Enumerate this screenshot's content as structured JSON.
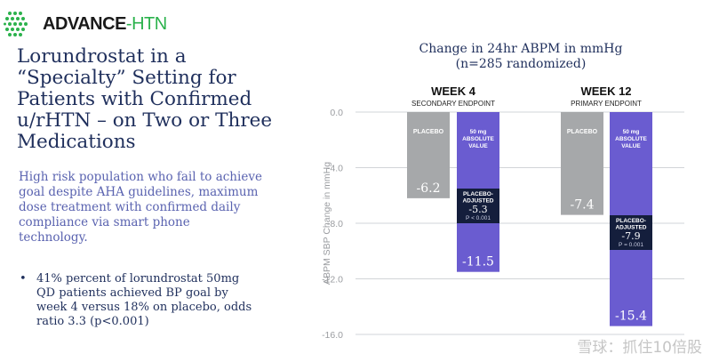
{
  "logo": {
    "brand": "ADVANCE",
    "suffix": "-HTN"
  },
  "title_lines": [
    "Lorundrostat in a",
    "“Specialty” Setting for",
    "Patients with Confirmed",
    "u/rHTN – on Two or Three",
    "Medications"
  ],
  "subtitle_lines": [
    "High risk population who fail to achieve",
    "goal despite AHA guidelines, maximum",
    "dose treatment with confirmed daily",
    "compliance via smart phone",
    "technology."
  ],
  "bullet": {
    "marker": "•",
    "lines": [
      "41% percent of lorundrostat 50mg",
      "QD patients achieved BP goal by",
      "week 4 versus 18% on placebo, odds",
      "ratio 3.3 (p<0.001)"
    ]
  },
  "watermark": "雪球：抓住10倍股",
  "colors": {
    "placebo": "#a6a8aa",
    "drug": "#6a5cd0",
    "dark_box": "#141e3c",
    "navy": "#1f2f5c",
    "subtitle": "#5a63b0",
    "logo_green": "#2bb24c"
  },
  "chart_data": {
    "type": "bar",
    "title_lines": [
      "Change in 24hr ABPM in mmHg",
      "(n=285 randomized)"
    ],
    "ylabel": "ABPM SBP Change in mmHg",
    "ylim": [
      -16.0,
      0.0
    ],
    "yticks": [
      0.0,
      -4.0,
      -8.0,
      -12.0,
      -16.0
    ],
    "ytick_labels": [
      "0.0",
      "-4.0",
      "-8.0",
      "-12.0",
      "-16.0"
    ],
    "grid": true,
    "groups": [
      {
        "heading": "WEEK 4",
        "subheading": "SECONDARY ENDPOINT",
        "placebo": {
          "label": "PLACEBO",
          "value": -6.2,
          "value_label": "-6.2"
        },
        "drug": {
          "label_lines": [
            "50 mg",
            "ABSOLUTE",
            "VALUE"
          ],
          "value": -11.5,
          "value_label": "-11.5"
        },
        "adjusted": {
          "label_lines": [
            "PLACEBO-",
            "ADJUSTED"
          ],
          "value": -5.3,
          "value_label": "-5.3",
          "p_text": "P < 0.001"
        }
      },
      {
        "heading": "WEEK 12",
        "subheading": "PRIMARY ENDPOINT",
        "placebo": {
          "label": "PLACEBO",
          "value": -7.4,
          "value_label": "-7.4"
        },
        "drug": {
          "label_lines": [
            "50 mg",
            "ABSOLUTE",
            "VALUE"
          ],
          "value": -15.4,
          "value_label": "-15.4"
        },
        "adjusted": {
          "label_lines": [
            "PLACEBO-",
            "ADJUSTED"
          ],
          "value": -7.9,
          "value_label": "-7.9",
          "p_text": "P = 0.001"
        }
      }
    ]
  }
}
